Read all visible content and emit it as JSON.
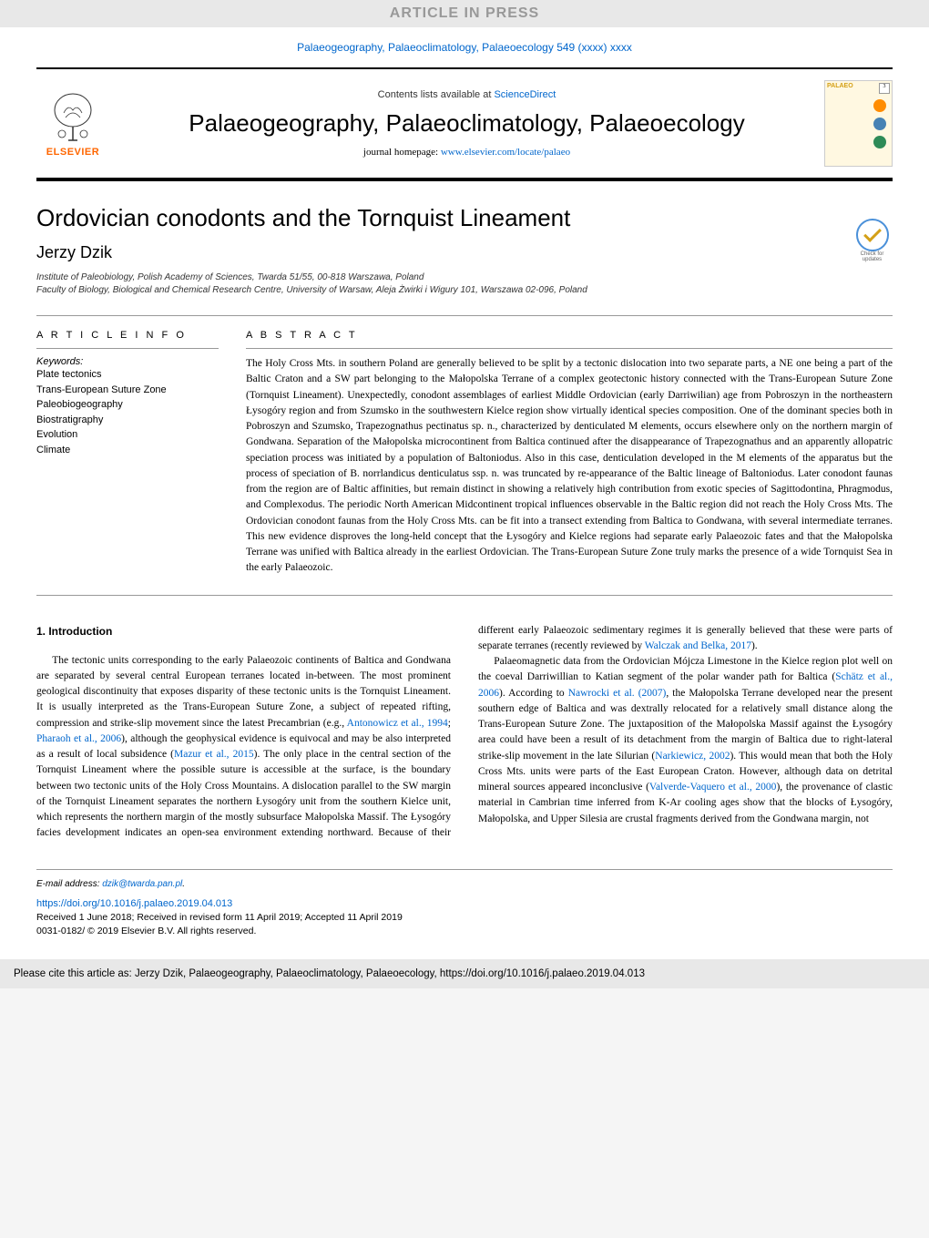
{
  "banner": {
    "aip": "ARTICLE IN PRESS"
  },
  "journal_ref": "Palaeogeography, Palaeoclimatology, Palaeoecology 549 (xxxx) xxxx",
  "header": {
    "contents_pre": "Contents lists available at ",
    "contents_link": "ScienceDirect",
    "journal_title": "Palaeogeography, Palaeoclimatology, Palaeoecology",
    "homepage_pre": "journal homepage: ",
    "homepage_link": "www.elsevier.com/locate/palaeo",
    "publisher": "ELSEVIER",
    "cover_title": "PALAEO",
    "cover_badge": "3"
  },
  "cover_colors": [
    "#ff8c00",
    "#4682b4",
    "#2e8b57"
  ],
  "article": {
    "title": "Ordovician conodonts and the Tornquist Lineament",
    "author": "Jerzy Dzik",
    "affil1": "Institute of Paleobiology, Polish Academy of Sciences, Twarda 51/55, 00-818 Warszawa, Poland",
    "affil2": "Faculty of Biology, Biological and Chemical Research Centre, University of Warsaw, Aleja Żwirki i Wigury 101, Warszawa 02-096, Poland"
  },
  "check_updates": "Check for updates",
  "info": {
    "head": "A R T I C L E  I N F O",
    "keywords_label": "Keywords:",
    "keywords": [
      "Plate tectonics",
      "Trans-European Suture Zone",
      "Paleobiogeography",
      "Biostratigraphy",
      "Evolution",
      "Climate"
    ]
  },
  "abstract": {
    "head": "A B S T R A C T",
    "text": "The Holy Cross Mts. in southern Poland are generally believed to be split by a tectonic dislocation into two separate parts, a NE one being a part of the Baltic Craton and a SW part belonging to the Małopolska Terrane of a complex geotectonic history connected with the Trans-European Suture Zone (Tornquist Lineament). Unexpectedly, conodont assemblages of earliest Middle Ordovician (early Darriwilian) age from Pobroszyn in the northeastern Łysogóry region and from Szumsko in the southwestern Kielce region show virtually identical species composition. One of the dominant species both in Pobroszyn and Szumsko, Trapezognathus pectinatus sp. n., characterized by denticulated M elements, occurs elsewhere only on the northern margin of Gondwana. Separation of the Małopolska microcontinent from Baltica continued after the disappearance of Trapezognathus and an apparently allopatric speciation process was initiated by a population of Baltoniodus. Also in this case, denticulation developed in the M elements of the apparatus but the process of speciation of B. norrlandicus denticulatus ssp. n. was truncated by re-appearance of the Baltic lineage of Baltoniodus. Later conodont faunas from the region are of Baltic affinities, but remain distinct in showing a relatively high contribution from exotic species of Sagittodontina, Phragmodus, and Complexodus. The periodic North American Midcontinent tropical influences observable in the Baltic region did not reach the Holy Cross Mts. The Ordovician conodont faunas from the Holy Cross Mts. can be fit into a transect extending from Baltica to Gondwana, with several intermediate terranes. This new evidence disproves the long-held concept that the Łysogóry and Kielce regions had separate early Palaeozoic fates and that the Małopolska Terrane was unified with Baltica already in the earliest Ordovician. The Trans-European Suture Zone truly marks the presence of a wide Tornquist Sea in the early Palaeozoic."
  },
  "body": {
    "heading": "1. Introduction",
    "p1_a": "The tectonic units corresponding to the early Palaeozoic continents of Baltica and Gondwana are separated by several central European terranes located in-between. The most prominent geological discontinuity that exposes disparity of these tectonic units is the Tornquist Lineament. It is usually interpreted as the Trans-European Suture Zone, a subject of repeated rifting, compression and strike-slip movement since the latest Precambrian (e.g., ",
    "p1_link1": "Antonowicz et al., 1994",
    "p1_b": "; ",
    "p1_link2": "Pharaoh et al., 2006",
    "p1_c": "), although the geophysical evidence is equivocal and may be also interpreted as a result of local subsidence (",
    "p1_link3": "Mazur et al., 2015",
    "p1_d": "). The only place in the central section of the Tornquist Lineament where the possible suture is accessible at the surface, is the boundary between two tectonic units of the Holy Cross Mountains. A dislocation parallel to the SW margin of the Tornquist Lineament separates the northern Łysogóry unit from the southern Kielce unit, which represents the northern margin of the mostly subsurface Małopolska Massif. The Łysogóry facies development indicates an open-sea environment extending northward. Because of their different early Palaeozoic sedimentary regimes it is generally believed that these were parts of separate terranes (recently reviewed by ",
    "p1_link4": "Walczak and Belka, 2017",
    "p1_e": ").",
    "p2_a": "Palaeomagnetic data from the Ordovician Mójcza Limestone in the Kielce region plot well on the coeval Darriwillian to Katian segment of the polar wander path for Baltica (",
    "p2_link1": "Schätz et al., 2006",
    "p2_b": "). According to ",
    "p2_link2": "Nawrocki et al. (2007)",
    "p2_c": ", the Małopolska Terrane developed near the present southern edge of Baltica and was dextrally relocated for a relatively small distance along the Trans-European Suture Zone. The juxtaposition of the Małopolska Massif against the Łysogóry area could have been a result of its detachment from the margin of Baltica due to right-lateral strike-slip movement in the late Silurian (",
    "p2_link3": "Narkiewicz, 2002",
    "p2_d": "). This would mean that both the Holy Cross Mts. units were parts of the East European Craton. However, although data on detrital mineral sources appeared inconclusive (",
    "p2_link4": "Valverde-Vaquero et al., 2000",
    "p2_e": "), the provenance of clastic material in Cambrian time inferred from K-Ar cooling ages show that the blocks of Łysogóry, Małopolska, and Upper Silesia are crustal fragments derived from the Gondwana margin, not"
  },
  "footer": {
    "email_label": "E-mail address: ",
    "email": "dzik@twarda.pan.pl",
    "doi": "https://doi.org/10.1016/j.palaeo.2019.04.013",
    "received": "Received 1 June 2018; Received in revised form 11 April 2019; Accepted 11 April 2019",
    "copyright": "0031-0182/ © 2019 Elsevier B.V. All rights reserved.",
    "cite": "Please cite this article as: Jerzy Dzik, Palaeogeography, Palaeoclimatology, Palaeoecology, https://doi.org/10.1016/j.palaeo.2019.04.013"
  }
}
